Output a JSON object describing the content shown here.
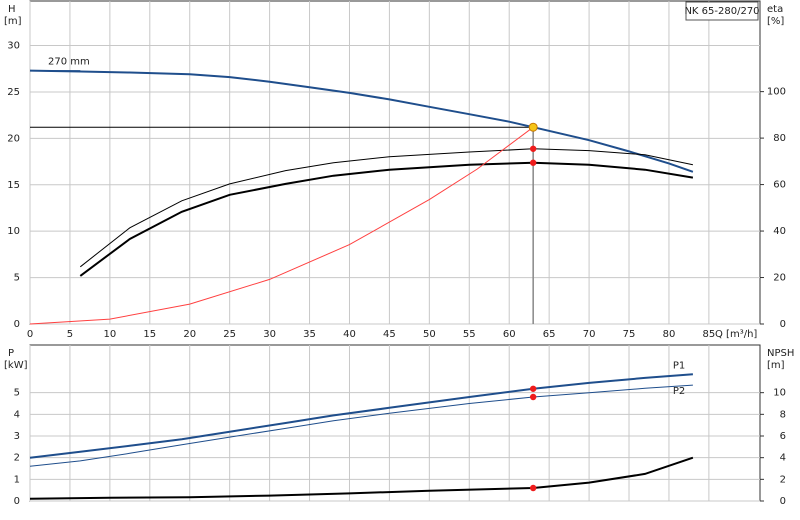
{
  "chart_data": [
    {
      "type": "line",
      "name": "NK 65-280/270",
      "annotation": "270 mm",
      "y_title": "H",
      "y_unit": "[m]",
      "y2_title": "eta",
      "y2_unit": "[%]",
      "x_title": "Q [m³/h]",
      "xlim": [
        0,
        91.4
      ],
      "xticks": [
        0,
        5,
        10,
        15,
        20,
        25,
        30,
        35,
        40,
        45,
        50,
        55,
        60,
        65,
        70,
        75,
        80,
        85
      ],
      "ylim": [
        0,
        34.8
      ],
      "yticks": [
        0,
        5,
        10,
        15,
        20,
        25,
        30
      ],
      "y2lim": [
        0,
        139
      ],
      "y2ticks": [
        0,
        20,
        40,
        60,
        80,
        100
      ],
      "grid": true,
      "show_xtick_labels": true,
      "series": [
        {
          "color": "#1f4e8c",
          "width": 2,
          "x": [
            0,
            6.3,
            12.5,
            20,
            25,
            30,
            35,
            40,
            45,
            50,
            55,
            60,
            63,
            70,
            75,
            80,
            83
          ],
          "values": [
            27.3,
            27.2,
            27.1,
            26.9,
            26.6,
            26.1,
            25.5,
            24.9,
            24.2,
            23.4,
            22.6,
            21.8,
            21.2,
            19.8,
            18.6,
            17.3,
            16.4
          ]
        },
        {
          "color": "#000000",
          "width": 1,
          "axis": "y2",
          "x": [
            6.3,
            12.5,
            19,
            25,
            32,
            38,
            45,
            55,
            63,
            70,
            77,
            83
          ],
          "values": [
            24.6,
            41.4,
            53,
            60.3,
            66,
            69.4,
            72,
            74,
            75.4,
            74.6,
            72.8,
            68.5
          ]
        },
        {
          "color": "#000000",
          "width": 2,
          "axis": "y2",
          "x": [
            6.3,
            12.5,
            19,
            25,
            32,
            38,
            45,
            55,
            63,
            70,
            77,
            83
          ],
          "values": [
            20.7,
            36.6,
            48.3,
            55.6,
            60.3,
            63.8,
            66.4,
            68.5,
            69.4,
            68.5,
            66.4,
            63
          ]
        },
        {
          "color": "#ff4040",
          "width": 1,
          "x": [
            0,
            10,
            20,
            30,
            40,
            50,
            56,
            63
          ],
          "values": [
            0,
            0.53,
            2.14,
            4.81,
            8.55,
            13.4,
            16.7,
            21.2
          ]
        }
      ],
      "points": [
        {
          "x": 63,
          "y": 21.2,
          "color": "#f5c518",
          "guides": true
        },
        {
          "x": 63,
          "y": 75.4,
          "color": "#ee1c1c",
          "axis": "y2"
        },
        {
          "x": 63,
          "y": 69.4,
          "color": "#ee1c1c",
          "axis": "y2"
        }
      ]
    },
    {
      "type": "line",
      "y_title": "P",
      "y_unit": "[kW]",
      "y2_title": "NPSH",
      "y2_unit": "[m]",
      "xlim": [
        0,
        91.4
      ],
      "xticks": [
        0,
        5,
        10,
        15,
        20,
        25,
        30,
        35,
        40,
        45,
        50,
        55,
        60,
        65,
        70,
        75,
        80,
        85
      ],
      "ylim": [
        0,
        7.2
      ],
      "yticks": [
        0,
        1,
        2,
        3,
        4,
        5
      ],
      "y2lim": [
        0,
        14.4
      ],
      "y2ticks": [
        0,
        2,
        4,
        6,
        8,
        10
      ],
      "grid": true,
      "show_xtick_labels": false,
      "series": [
        {
          "name": "P1",
          "label_pos": "above",
          "color": "#1f4e8c",
          "width": 2,
          "x": [
            0,
            6.3,
            12.5,
            19,
            25,
            32,
            38,
            45,
            55,
            63,
            70,
            77,
            83
          ],
          "values": [
            2.0,
            2.27,
            2.55,
            2.85,
            3.2,
            3.6,
            3.95,
            4.3,
            4.8,
            5.18,
            5.45,
            5.68,
            5.85
          ]
        },
        {
          "name": "P2",
          "label_pos": "below",
          "color": "#1f4e8c",
          "width": 1,
          "x": [
            0,
            6.3,
            12.5,
            19,
            25,
            32,
            38,
            45,
            55,
            63,
            70,
            77,
            83
          ],
          "values": [
            1.6,
            1.85,
            2.2,
            2.6,
            2.95,
            3.35,
            3.7,
            4.05,
            4.5,
            4.8,
            5.0,
            5.2,
            5.35
          ]
        },
        {
          "color": "#000000",
          "width": 2,
          "axis": "y2",
          "x": [
            0,
            10,
            20,
            30,
            40,
            50,
            63,
            70,
            77,
            83
          ],
          "values": [
            0.2,
            0.3,
            0.35,
            0.5,
            0.7,
            0.95,
            1.2,
            1.7,
            2.5,
            4.0
          ]
        }
      ],
      "points": [
        {
          "x": 63,
          "y": 5.18,
          "color": "#ee1c1c"
        },
        {
          "x": 63,
          "y": 4.8,
          "color": "#ee1c1c"
        },
        {
          "x": 63,
          "y": 1.2,
          "color": "#ee1c1c",
          "axis": "y2"
        }
      ]
    }
  ]
}
